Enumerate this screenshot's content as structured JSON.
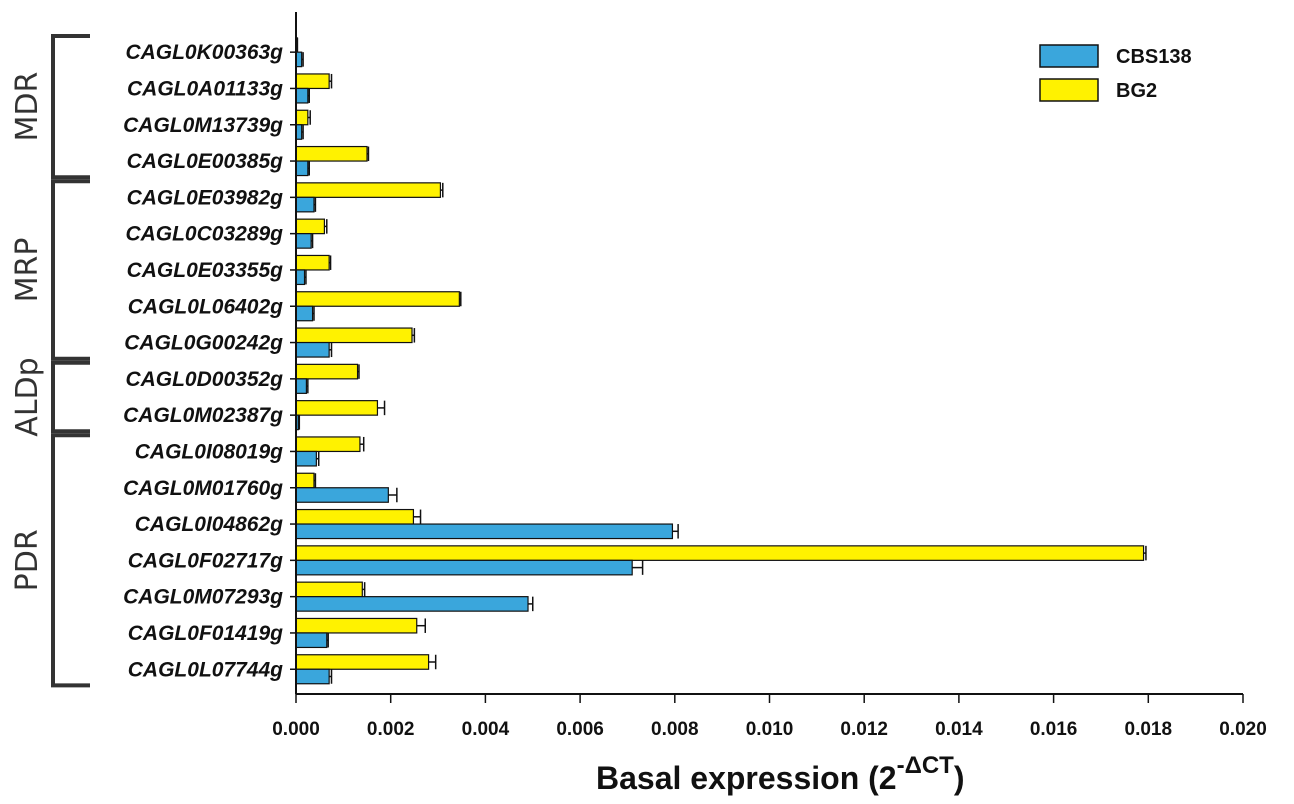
{
  "chart_data": {
    "type": "bar",
    "orientation": "horizontal",
    "categories": [
      "CAGL0K00363g",
      "CAGL0A01133g",
      "CAGL0M13739g",
      "CAGL0E00385g",
      "CAGL0E03982g",
      "CAGL0C03289g",
      "CAGL0E03355g",
      "CAGL0L06402g",
      "CAGL0G00242g",
      "CAGL0D00352g",
      "CAGL0M02387g",
      "CAGL0I08019g",
      "CAGL0M01760g",
      "CAGL0I04862g",
      "CAGL0F02717g",
      "CAGL0M07293g",
      "CAGL0F01419g",
      "CAGL0L07744g"
    ],
    "series": [
      {
        "name": "CBS138",
        "color": "#3aa6dc",
        "values": [
          0.00012,
          0.00025,
          0.00012,
          0.00025,
          0.00038,
          0.00032,
          0.00018,
          0.00035,
          0.0007,
          0.00022,
          5e-05,
          0.00043,
          0.00195,
          0.00795,
          0.0071,
          0.0049,
          0.00065,
          0.0007
        ],
        "errors": [
          3e-05,
          3e-05,
          3e-05,
          3e-05,
          3e-05,
          3e-05,
          3e-05,
          3e-05,
          5e-05,
          3e-05,
          2e-05,
          5e-05,
          0.00018,
          0.00012,
          0.00022,
          0.0001,
          3e-05,
          5e-05
        ]
      },
      {
        "name": "BG2",
        "color": "#fff200",
        "values": [
          2e-05,
          0.0007,
          0.00025,
          0.0015,
          0.00305,
          0.0006,
          0.0007,
          0.00345,
          0.00245,
          0.0013,
          0.00172,
          0.00135,
          0.00038,
          0.00248,
          0.0179,
          0.0014,
          0.00255,
          0.0028
        ],
        "errors": [
          1e-05,
          5e-05,
          5e-05,
          3e-05,
          5e-05,
          5e-05,
          3e-05,
          3e-05,
          5e-05,
          3e-05,
          0.00015,
          8e-05,
          3e-05,
          0.00015,
          5e-05,
          5e-05,
          0.00018,
          0.00015
        ]
      }
    ],
    "groups": [
      {
        "label": "MDR",
        "start": 0,
        "end": 3
      },
      {
        "label": "MRP",
        "start": 4,
        "end": 8
      },
      {
        "label": "ALDp",
        "start": 9,
        "end": 10
      },
      {
        "label": "PDR",
        "start": 11,
        "end": 17
      }
    ],
    "xticks": [
      "0.000",
      "0.002",
      "0.004",
      "0.006",
      "0.008",
      "0.010",
      "0.012",
      "0.014",
      "0.016",
      "0.018",
      "0.020"
    ],
    "xlim": [
      0,
      0.02
    ],
    "xlabel_main": "Basal expression (2",
    "xlabel_sup": "-ΔCT",
    "xlabel_close": ")",
    "legend_position": "top-right",
    "grid": false
  }
}
